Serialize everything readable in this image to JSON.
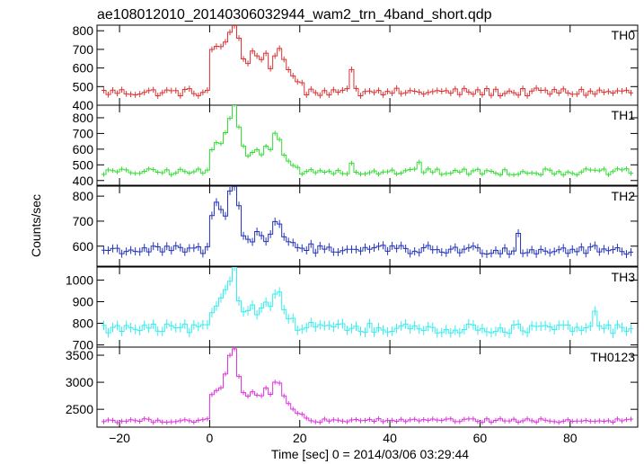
{
  "title": "ae108012010_20140306032944_wam2_trn_4band_short.qdp",
  "ylabel": "Counts/sec",
  "xlabel": "Time [sec] 0 = 2014/03/06 03:29:44",
  "chart_data": {
    "type": "line",
    "step": true,
    "error_bars": true,
    "x_range": [
      -25,
      95
    ],
    "x_ticks": [
      -20,
      0,
      20,
      40,
      60,
      80
    ],
    "bin_width": 1.0,
    "burst_onset": 0,
    "panels": [
      {
        "name": "TH0",
        "color": "#dd3333",
        "ylim": [
          400,
          830
        ],
        "yticks": [
          400,
          500,
          600,
          700,
          800
        ],
        "baseline": 470,
        "noise": 22,
        "err": 16,
        "peaks": [
          [
            0,
            700
          ],
          [
            1,
            720
          ],
          [
            2,
            710
          ],
          [
            3,
            740
          ],
          [
            4,
            790
          ],
          [
            5,
            830
          ],
          [
            6,
            760
          ],
          [
            7,
            650
          ],
          [
            8,
            620
          ],
          [
            9,
            690
          ],
          [
            10,
            670
          ],
          [
            11,
            640
          ],
          [
            12,
            680
          ],
          [
            13,
            600
          ],
          [
            14,
            660
          ],
          [
            15,
            700
          ],
          [
            16,
            650
          ],
          [
            17,
            590
          ],
          [
            18,
            560
          ],
          [
            19,
            530
          ],
          [
            20,
            520
          ],
          [
            31,
            590
          ]
        ]
      },
      {
        "name": "TH1",
        "color": "#33dd33",
        "ylim": [
          370,
          880
        ],
        "yticks": [
          400,
          500,
          600,
          700,
          800
        ],
        "baseline": 455,
        "noise": 20,
        "err": 15,
        "peaks": [
          [
            0,
            600
          ],
          [
            1,
            640
          ],
          [
            2,
            640
          ],
          [
            3,
            700
          ],
          [
            4,
            800
          ],
          [
            5,
            880
          ],
          [
            6,
            740
          ],
          [
            7,
            620
          ],
          [
            8,
            560
          ],
          [
            9,
            580
          ],
          [
            10,
            600
          ],
          [
            11,
            560
          ],
          [
            12,
            620
          ],
          [
            13,
            600
          ],
          [
            14,
            700
          ],
          [
            15,
            660
          ],
          [
            16,
            560
          ],
          [
            17,
            520
          ],
          [
            18,
            500
          ],
          [
            19,
            480
          ],
          [
            31,
            510
          ],
          [
            46,
            520
          ]
        ]
      },
      {
        "name": "TH2",
        "color": "#2233bb",
        "ylim": [
          520,
          840
        ],
        "yticks": [
          600,
          700,
          800
        ],
        "baseline": 585,
        "noise": 18,
        "err": 16,
        "peaks": [
          [
            0,
            720
          ],
          [
            1,
            780
          ],
          [
            2,
            750
          ],
          [
            3,
            720
          ],
          [
            4,
            820
          ],
          [
            5,
            840
          ],
          [
            6,
            760
          ],
          [
            7,
            640
          ],
          [
            8,
            630
          ],
          [
            9,
            620
          ],
          [
            10,
            660
          ],
          [
            11,
            640
          ],
          [
            12,
            620
          ],
          [
            13,
            650
          ],
          [
            14,
            700
          ],
          [
            15,
            690
          ],
          [
            16,
            640
          ],
          [
            17,
            620
          ],
          [
            18,
            610
          ],
          [
            68,
            650
          ]
        ]
      },
      {
        "name": "TH3",
        "color": "#33eeee",
        "ylim": [
          690,
          1060
        ],
        "yticks": [
          700,
          800,
          900,
          1000
        ],
        "baseline": 775,
        "noise": 22,
        "err": 22,
        "peaks": [
          [
            0,
            850
          ],
          [
            1,
            880
          ],
          [
            2,
            920
          ],
          [
            3,
            960
          ],
          [
            4,
            1000
          ],
          [
            5,
            1060
          ],
          [
            6,
            900
          ],
          [
            7,
            850
          ],
          [
            8,
            860
          ],
          [
            9,
            880
          ],
          [
            10,
            840
          ],
          [
            11,
            870
          ],
          [
            12,
            900
          ],
          [
            13,
            880
          ],
          [
            14,
            930
          ],
          [
            15,
            950
          ],
          [
            16,
            860
          ],
          [
            17,
            820
          ],
          [
            18,
            820
          ],
          [
            85,
            860
          ]
        ]
      },
      {
        "name": "TH0123",
        "color": "#dd33dd",
        "ylim": [
          2170,
          3650
        ],
        "yticks": [
          2500,
          3000,
          3500
        ],
        "baseline": 2290,
        "noise": 35,
        "err": 45,
        "peaks": [
          [
            0,
            2780
          ],
          [
            1,
            2840
          ],
          [
            2,
            2900
          ],
          [
            3,
            3150
          ],
          [
            4,
            3500
          ],
          [
            5,
            3620
          ],
          [
            6,
            3100
          ],
          [
            7,
            2800
          ],
          [
            8,
            2740
          ],
          [
            9,
            2820
          ],
          [
            10,
            2760
          ],
          [
            11,
            2750
          ],
          [
            12,
            2900
          ],
          [
            13,
            2780
          ],
          [
            14,
            3000
          ],
          [
            15,
            2980
          ],
          [
            16,
            2750
          ],
          [
            17,
            2600
          ],
          [
            18,
            2500
          ],
          [
            19,
            2430
          ],
          [
            20,
            2400
          ]
        ]
      }
    ]
  }
}
